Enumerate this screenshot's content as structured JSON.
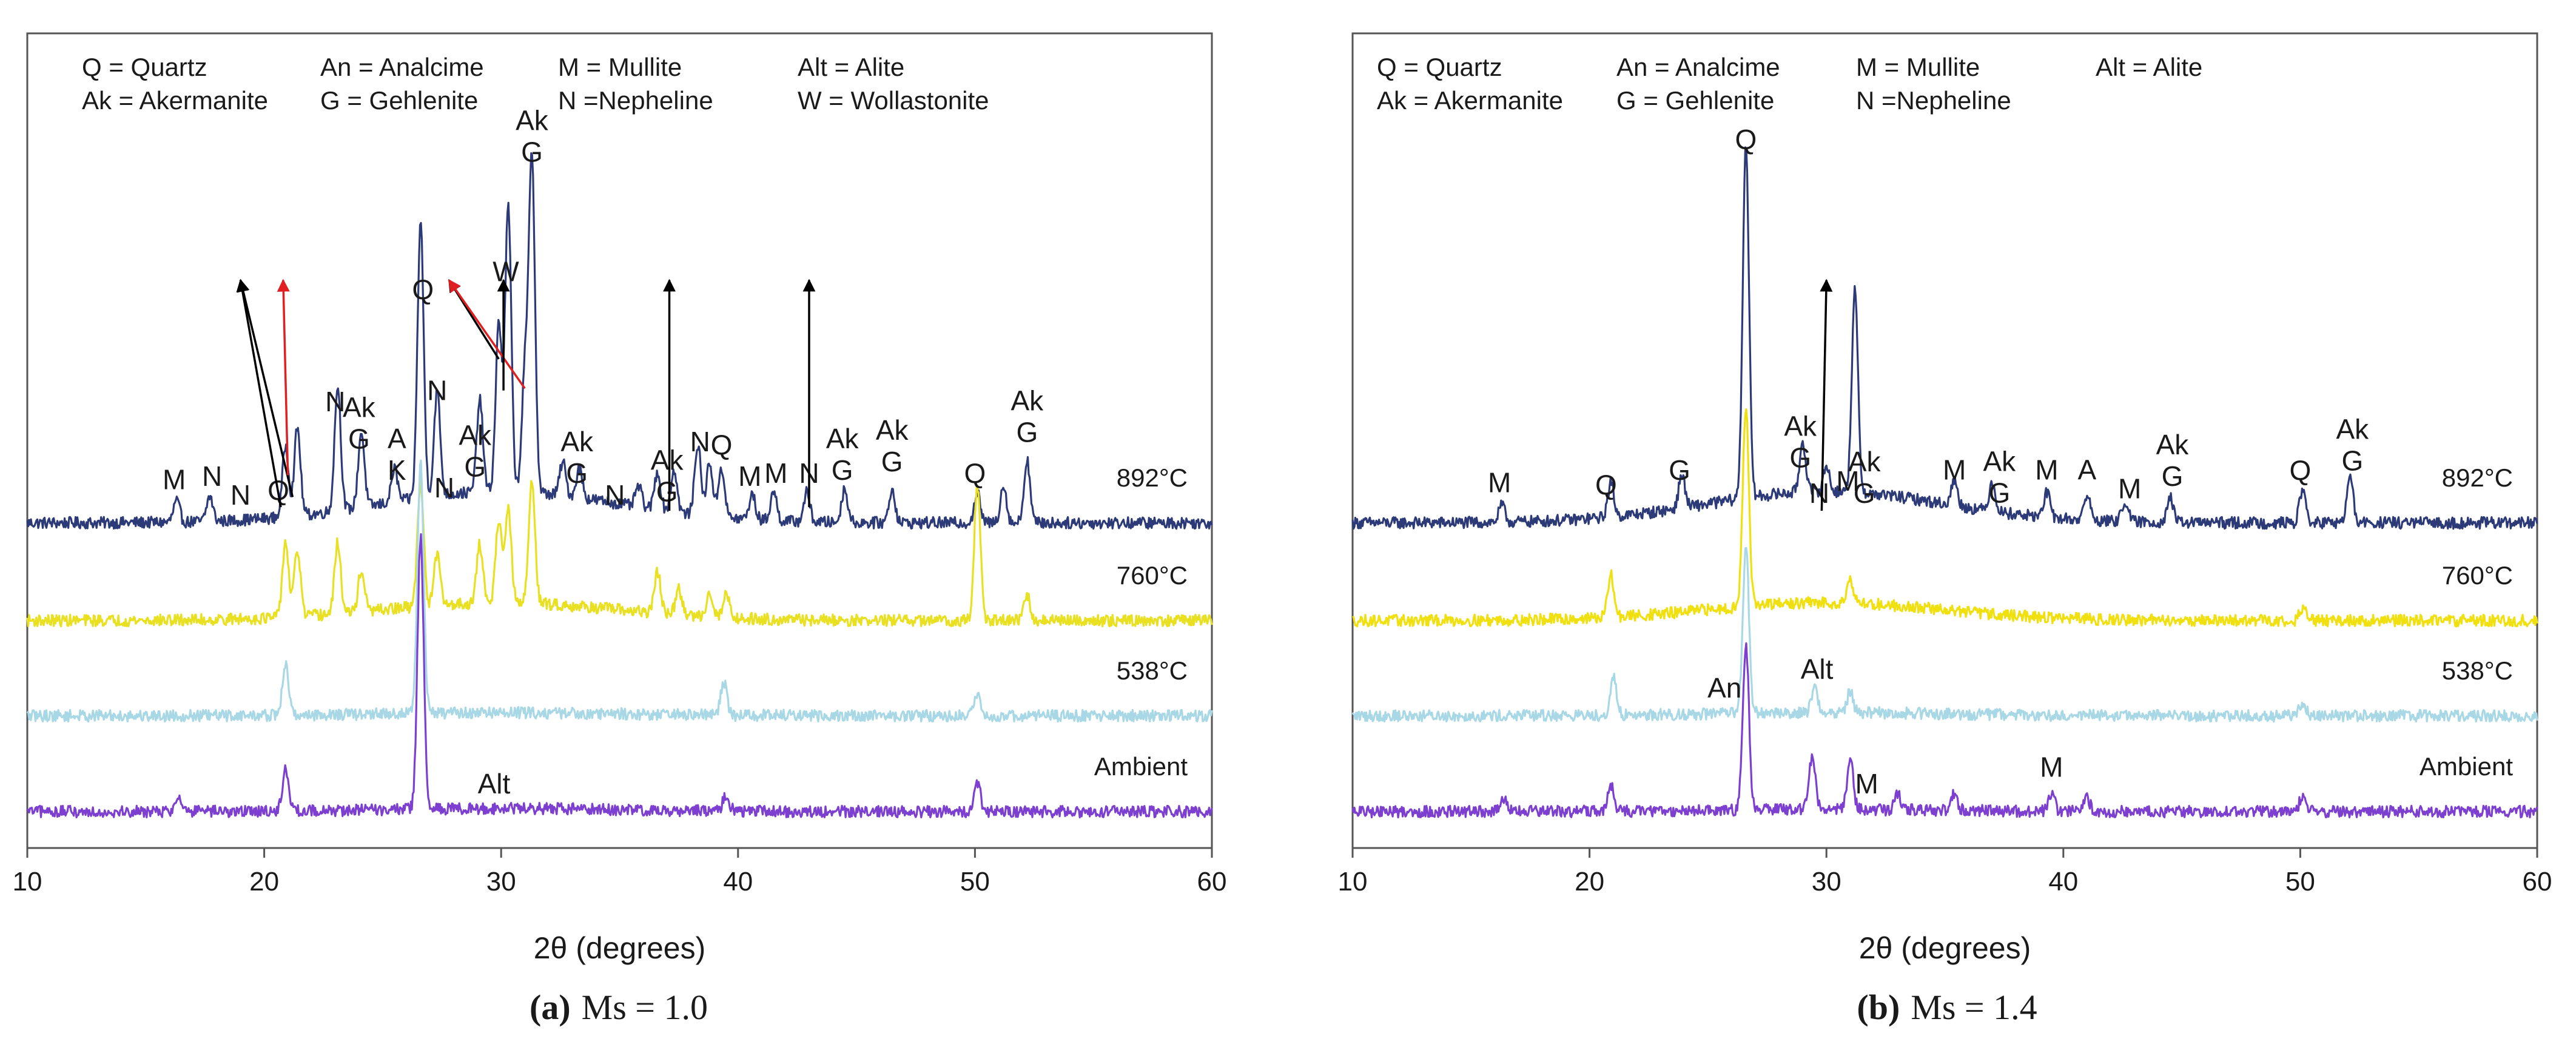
{
  "chart_data": [
    {
      "type": "line",
      "caption": {
        "label": "(a)",
        "text": "Ms = 1.0"
      },
      "xlabel": "2θ (degrees)",
      "ylabel": "",
      "xlim": [
        10,
        60
      ],
      "xticks": [
        10,
        20,
        30,
        40,
        50,
        60
      ],
      "y_axis_shown": false,
      "legend_lines": [
        [
          "Q = Quartz",
          "An = Analcime",
          "M = Mullite",
          "Alt = Alite"
        ],
        [
          "Ak = Akermanite",
          "G = Gehlenite",
          "N =Nepheline",
          "W = Wollastonite"
        ]
      ],
      "series": [
        {
          "name": "892°C",
          "color": "#2c3a78",
          "baseline": 0.3,
          "peaks": [
            [
              16.3,
              0.05
            ],
            [
              17.7,
              0.06
            ],
            [
              20.9,
              0.17
            ],
            [
              21.4,
              0.21
            ],
            [
              23.1,
              0.3
            ],
            [
              24.1,
              0.18
            ],
            [
              25.5,
              0.08
            ],
            [
              26.6,
              0.66
            ],
            [
              27.3,
              0.25
            ],
            [
              29.1,
              0.22
            ],
            [
              29.9,
              0.4
            ],
            [
              30.3,
              0.68
            ],
            [
              31.0,
              0.28
            ],
            [
              31.3,
              0.8
            ],
            [
              32.6,
              0.08
            ],
            [
              33.3,
              0.07
            ],
            [
              35.8,
              0.05
            ],
            [
              36.6,
              0.09
            ],
            [
              37.3,
              0.1
            ],
            [
              38.3,
              0.17
            ],
            [
              38.8,
              0.13
            ],
            [
              39.3,
              0.12
            ],
            [
              40.6,
              0.06
            ],
            [
              41.5,
              0.07
            ],
            [
              42.9,
              0.07
            ],
            [
              44.5,
              0.08
            ],
            [
              46.5,
              0.08
            ],
            [
              50.1,
              0.07
            ],
            [
              51.2,
              0.09
            ],
            [
              52.2,
              0.15
            ]
          ]
        },
        {
          "name": "760°C",
          "color": "#e8e020",
          "baseline": 0.17,
          "peaks": [
            [
              20.9,
              0.18
            ],
            [
              21.4,
              0.16
            ],
            [
              23.1,
              0.17
            ],
            [
              24.1,
              0.1
            ],
            [
              26.6,
              0.3
            ],
            [
              27.3,
              0.12
            ],
            [
              29.1,
              0.14
            ],
            [
              29.9,
              0.2
            ],
            [
              30.3,
              0.22
            ],
            [
              31.3,
              0.3
            ],
            [
              36.6,
              0.1
            ],
            [
              37.5,
              0.06
            ],
            [
              38.8,
              0.06
            ],
            [
              39.5,
              0.06
            ],
            [
              50.1,
              0.32
            ],
            [
              52.2,
              0.06
            ]
          ]
        },
        {
          "name": "538°C",
          "color": "#a8d8e6",
          "baseline": 0.03,
          "peaks": [
            [
              20.9,
              0.12
            ],
            [
              26.6,
              0.6
            ],
            [
              39.4,
              0.08
            ],
            [
              50.1,
              0.05
            ]
          ]
        },
        {
          "name": "Ambient",
          "color": "#7d3fd0",
          "baseline": 0.03,
          "peaks": [
            [
              16.4,
              0.04
            ],
            [
              20.9,
              0.1
            ],
            [
              26.6,
              0.65
            ],
            [
              39.5,
              0.04
            ],
            [
              50.1,
              0.07
            ]
          ]
        }
      ],
      "annotations": [
        {
          "text": "M",
          "x": 16.2,
          "series": "892°C",
          "color": "#000000"
        },
        {
          "text": "N",
          "x": 17.8,
          "series": "892°C",
          "color": "#000000"
        },
        {
          "text": "N",
          "x": 19.0,
          "series": "892°C",
          "color": "#000000"
        },
        {
          "text": "Q",
          "x": 20.6,
          "series": "892°C",
          "color": "#000000"
        },
        {
          "text": "N",
          "x": 23.0,
          "series": "892°C",
          "color": "#000000"
        },
        {
          "text": "Ak",
          "x": 24.0,
          "series": "892°C",
          "color": "#000000"
        },
        {
          "text": "G",
          "x": 24.0,
          "series": "892°C",
          "color": "#000000"
        },
        {
          "text": "A",
          "x": 25.6,
          "series": "892°C",
          "color": "#000000"
        },
        {
          "text": "K",
          "x": 25.6,
          "series": "892°C",
          "color": "#000000"
        },
        {
          "text": "Q",
          "x": 26.7,
          "series": "892°C",
          "color": "#000000"
        },
        {
          "text": "N",
          "x": 27.3,
          "series": "892°C",
          "color": "#000000"
        },
        {
          "text": "Ak",
          "x": 28.9,
          "series": "892°C",
          "color": "#000000"
        },
        {
          "text": "G",
          "x": 28.9,
          "series": "892°C",
          "color": "#000000"
        },
        {
          "text": "N",
          "x": 27.6,
          "series": "892°C",
          "color": "#000000"
        },
        {
          "text": "W",
          "x": 30.2,
          "series": "892°C",
          "color": "#000000"
        },
        {
          "text": "Ak",
          "x": 31.3,
          "series": "892°C",
          "color": "#000000"
        },
        {
          "text": "G",
          "x": 31.3,
          "series": "892°C",
          "color": "#000000"
        },
        {
          "text": "Ak",
          "x": 33.2,
          "series": "892°C",
          "color": "#000000"
        },
        {
          "text": "G",
          "x": 33.2,
          "series": "892°C",
          "color": "#000000"
        },
        {
          "text": "N",
          "x": 34.8,
          "series": "892°C",
          "color": "#000000"
        },
        {
          "text": "Ak",
          "x": 37.0,
          "series": "892°C",
          "color": "#000000"
        },
        {
          "text": "G",
          "x": 37.0,
          "series": "892°C",
          "color": "#000000"
        },
        {
          "text": "N",
          "x": 38.4,
          "series": "892°C",
          "color": "#000000"
        },
        {
          "text": "Q",
          "x": 39.3,
          "series": "892°C",
          "color": "#000000"
        },
        {
          "text": "M",
          "x": 40.5,
          "series": "892°C",
          "color": "#000000"
        },
        {
          "text": "M",
          "x": 41.6,
          "series": "892°C",
          "color": "#000000"
        },
        {
          "text": "N",
          "x": 43.0,
          "series": "892°C",
          "color": "#000000"
        },
        {
          "text": "Ak",
          "x": 44.4,
          "series": "892°C",
          "color": "#000000"
        },
        {
          "text": "G",
          "x": 44.4,
          "series": "892°C",
          "color": "#000000"
        },
        {
          "text": "Ak",
          "x": 46.5,
          "series": "892°C",
          "color": "#000000"
        },
        {
          "text": "G",
          "x": 46.5,
          "series": "892°C",
          "color": "#000000"
        },
        {
          "text": "Q",
          "x": 50.0,
          "series": "892°C",
          "color": "#000000"
        },
        {
          "text": "Ak",
          "x": 52.2,
          "series": "892°C",
          "color": "#000000"
        },
        {
          "text": "G",
          "x": 52.2,
          "series": "892°C",
          "color": "#000000"
        },
        {
          "text": "Alt",
          "x": 29.7,
          "series": "Ambient",
          "color": "#000000"
        }
      ],
      "arrows": [
        {
          "from_x": 21.2,
          "to_x": 19.0,
          "series": "892°C",
          "color": "#000000"
        },
        {
          "from_x": 20.7,
          "to_x": 19.0,
          "series": "892°C",
          "color": "#000000"
        },
        {
          "from_x": 21.0,
          "to_x": 20.8,
          "series": "892°C",
          "color": "#e02020"
        },
        {
          "from_x": 29.9,
          "to_x": 27.8,
          "series": "892°C",
          "color": "#000000"
        },
        {
          "from_x": 31.0,
          "to_x": 27.8,
          "series": "892°C",
          "color": "#e02020"
        },
        {
          "from_x": 30.1,
          "to_x": 30.1,
          "series": "892°C",
          "color": "#000000"
        },
        {
          "from_x": 37.1,
          "to_x": 37.1,
          "series": "892°C",
          "color": "#000000"
        },
        {
          "from_x": 43.0,
          "to_x": 43.0,
          "series": "892°C",
          "color": "#000000"
        }
      ]
    },
    {
      "type": "line",
      "caption": {
        "label": "(b)",
        "text": "Ms = 1.4"
      },
      "xlabel": "2θ (degrees)",
      "ylabel": "",
      "xlim": [
        10,
        60
      ],
      "xticks": [
        10,
        20,
        30,
        40,
        50,
        60
      ],
      "y_axis_shown": false,
      "legend_lines": [
        [
          "Q = Quartz",
          "An = Analcime",
          "M = Mullite",
          "Alt = Alite"
        ],
        [
          "Ak = Akermanite",
          "G = Gehlenite",
          "N =Nepheline"
        ]
      ],
      "series": [
        {
          "name": "892°C",
          "color": "#2c3a78",
          "baseline": 0.3,
          "peaks": [
            [
              16.3,
              0.04
            ],
            [
              20.9,
              0.08
            ],
            [
              23.9,
              0.08
            ],
            [
              26.6,
              0.85
            ],
            [
              29.0,
              0.12
            ],
            [
              30.0,
              0.06
            ],
            [
              31.2,
              0.48
            ],
            [
              35.4,
              0.06
            ],
            [
              37.0,
              0.07
            ],
            [
              39.3,
              0.06
            ],
            [
              41.0,
              0.06
            ],
            [
              42.6,
              0.05
            ],
            [
              44.5,
              0.06
            ],
            [
              50.1,
              0.08
            ],
            [
              52.1,
              0.11
            ]
          ]
        },
        {
          "name": "760°C",
          "color": "#f0e010",
          "baseline": 0.17,
          "peaks": [
            [
              20.9,
              0.1
            ],
            [
              26.6,
              0.48
            ],
            [
              31.0,
              0.06
            ],
            [
              50.1,
              0.03
            ]
          ]
        },
        {
          "name": "538°C",
          "color": "#a8d8e6",
          "baseline": 0.03,
          "peaks": [
            [
              21.0,
              0.09
            ],
            [
              26.6,
              0.4
            ],
            [
              29.5,
              0.06
            ],
            [
              31.0,
              0.05
            ],
            [
              50.1,
              0.03
            ]
          ]
        },
        {
          "name": "Ambient",
          "color": "#7d3fd0",
          "baseline": 0.02,
          "peaks": [
            [
              16.4,
              0.03
            ],
            [
              20.9,
              0.06
            ],
            [
              26.6,
              0.4
            ],
            [
              29.4,
              0.13
            ],
            [
              31.0,
              0.12
            ],
            [
              33.0,
              0.04
            ],
            [
              35.4,
              0.04
            ],
            [
              39.5,
              0.04
            ],
            [
              41.0,
              0.03
            ],
            [
              50.1,
              0.04
            ]
          ]
        }
      ],
      "annotations": [
        {
          "text": "M",
          "x": 16.2,
          "series": "892°C",
          "color": "#000000"
        },
        {
          "text": "Q",
          "x": 20.7,
          "series": "892°C",
          "color": "#000000"
        },
        {
          "text": "G",
          "x": 23.8,
          "series": "892°C",
          "color": "#000000"
        },
        {
          "text": "Q",
          "x": 26.6,
          "series": "892°C",
          "color": "#000000"
        },
        {
          "text": "Ak",
          "x": 28.9,
          "series": "892°C",
          "color": "#000000"
        },
        {
          "text": "G",
          "x": 28.9,
          "series": "892°C",
          "color": "#000000"
        },
        {
          "text": "N",
          "x": 29.7,
          "series": "892°C",
          "color": "#000000"
        },
        {
          "text": "M",
          "x": 30.9,
          "series": "892°C",
          "color": "#000000"
        },
        {
          "text": "Ak",
          "x": 31.6,
          "series": "892°C",
          "color": "#000000"
        },
        {
          "text": "G",
          "x": 31.6,
          "series": "892°C",
          "color": "#000000"
        },
        {
          "text": "M",
          "x": 35.4,
          "series": "892°C",
          "color": "#000000"
        },
        {
          "text": "Ak",
          "x": 37.3,
          "series": "892°C",
          "color": "#000000"
        },
        {
          "text": "G",
          "x": 37.3,
          "series": "892°C",
          "color": "#000000"
        },
        {
          "text": "M",
          "x": 39.3,
          "series": "892°C",
          "color": "#000000"
        },
        {
          "text": "A",
          "x": 41.0,
          "series": "892°C",
          "color": "#000000"
        },
        {
          "text": "M",
          "x": 42.8,
          "series": "892°C",
          "color": "#000000"
        },
        {
          "text": "Ak",
          "x": 44.6,
          "series": "892°C",
          "color": "#000000"
        },
        {
          "text": "G",
          "x": 44.6,
          "series": "892°C",
          "color": "#000000"
        },
        {
          "text": "Q",
          "x": 50.0,
          "series": "892°C",
          "color": "#000000"
        },
        {
          "text": "Ak",
          "x": 52.2,
          "series": "892°C",
          "color": "#000000"
        },
        {
          "text": "G",
          "x": 52.2,
          "series": "892°C",
          "color": "#000000"
        },
        {
          "text": "An",
          "x": 25.7,
          "series": "538°C",
          "color": "#000000"
        },
        {
          "text": "Alt",
          "x": 29.6,
          "series": "538°C",
          "color": "#000000"
        },
        {
          "text": "M",
          "x": 31.7,
          "series": "Ambient",
          "color": "#000000"
        },
        {
          "text": "M",
          "x": 39.5,
          "series": "Ambient",
          "color": "#000000"
        }
      ],
      "arrows": [
        {
          "from_x": 29.8,
          "to_x": 30.0,
          "series": "892°C",
          "color": "#000000"
        }
      ]
    }
  ]
}
